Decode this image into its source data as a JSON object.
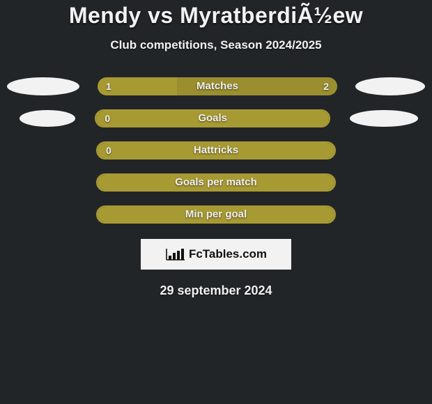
{
  "title": "Mendy vs MyratberdiÃ½ew",
  "subtitle": "Club competitions, Season 2024/2025",
  "colors": {
    "background": "#222528",
    "bar": "#a89a33",
    "ellipse": "#f2f2f2",
    "text": "#f0f0f0",
    "logo_bg": "#f2f2f2",
    "logo_text": "#111111"
  },
  "rows": [
    {
      "label": "Matches",
      "left_value": "1",
      "right_value": "2",
      "left_fill_pct": 33,
      "right_fill_pct": 67,
      "filled": true,
      "show_left_ellipse": true,
      "show_right_ellipse": true,
      "ellipse_variant": 1
    },
    {
      "label": "Goals",
      "left_value": "0",
      "right_value": "",
      "left_fill_pct": 0,
      "right_fill_pct": 0,
      "filled": false,
      "show_left_ellipse": true,
      "show_right_ellipse": true,
      "ellipse_variant": 2
    },
    {
      "label": "Hattricks",
      "left_value": "0",
      "right_value": "",
      "left_fill_pct": 0,
      "right_fill_pct": 0,
      "filled": false,
      "show_left_ellipse": false,
      "show_right_ellipse": false,
      "ellipse_variant": 0
    },
    {
      "label": "Goals per match",
      "left_value": "",
      "right_value": "",
      "left_fill_pct": 0,
      "right_fill_pct": 0,
      "filled": false,
      "show_left_ellipse": false,
      "show_right_ellipse": false,
      "ellipse_variant": 0
    },
    {
      "label": "Min per goal",
      "left_value": "",
      "right_value": "",
      "left_fill_pct": 0,
      "right_fill_pct": 0,
      "filled": false,
      "show_left_ellipse": false,
      "show_right_ellipse": false,
      "ellipse_variant": 0
    }
  ],
  "logo": {
    "text": "FcTables.com",
    "icon_name": "bar-chart-icon"
  },
  "date": "29 september 2024"
}
